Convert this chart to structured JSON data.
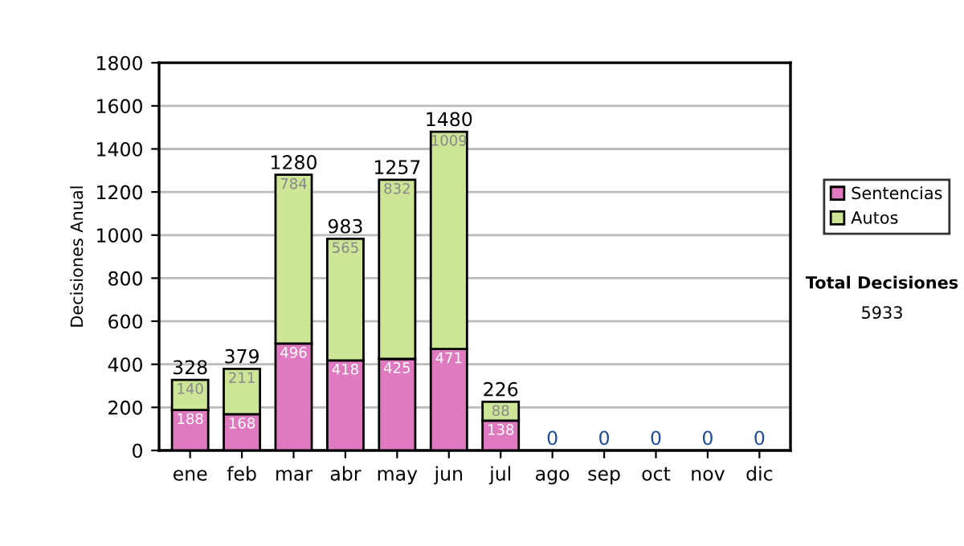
{
  "chart_data": {
    "type": "bar",
    "stacked": true,
    "ylabel": "Decisiones Anual",
    "categories": [
      "ene",
      "feb",
      "mar",
      "abr",
      "may",
      "jun",
      "jul",
      "ago",
      "sep",
      "oct",
      "nov",
      "dic"
    ],
    "series": [
      {
        "name": "Sentencias",
        "color": "#e07ac0",
        "values": [
          188,
          168,
          496,
          418,
          425,
          471,
          138,
          0,
          0,
          0,
          0,
          0
        ],
        "value_labels": [
          "188",
          "168",
          "496",
          "418",
          "425",
          "471",
          "138",
          null,
          null,
          null,
          null,
          null
        ]
      },
      {
        "name": "Autos",
        "color": "#cde597",
        "values": [
          140,
          211,
          784,
          565,
          832,
          1009,
          88,
          0,
          0,
          0,
          0,
          0
        ],
        "value_labels": [
          "140",
          "211",
          "784",
          "565",
          "832",
          "1009",
          "88",
          null,
          null,
          null,
          null,
          null
        ]
      }
    ],
    "totals": [
      "328",
      "379",
      "1280",
      "983",
      "1257",
      "1480",
      "226",
      "0",
      "0",
      "0",
      "0",
      "0"
    ],
    "ylim": [
      0,
      1800
    ],
    "yticks": [
      0,
      200,
      400,
      600,
      800,
      1000,
      1200,
      1400,
      1600,
      1800
    ],
    "grid": "y",
    "legend": "right",
    "annotations": [
      "Total Decisiones",
      "5933"
    ]
  }
}
